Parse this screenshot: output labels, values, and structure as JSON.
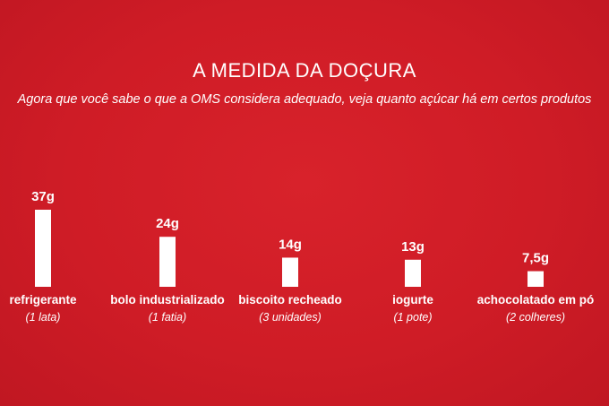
{
  "chart_data": {
    "type": "bar",
    "title": "A MEDIDA DA DOÇURA",
    "subtitle": "Agora que você sabe o que a OMS considera adequado, veja quanto açúcar há em certos produtos",
    "categories": [
      "refrigerante",
      "bolo industrializado",
      "biscoito recheado",
      "iogurte",
      "achocolatado em pó"
    ],
    "notes": [
      "(1 lata)",
      "(1 fatia)",
      "(3 unidades)",
      "(1 pote)",
      "(2 colheres)"
    ],
    "values": [
      37,
      24,
      14,
      13,
      7.5
    ],
    "value_labels": [
      "37g",
      "24g",
      "14g",
      "13g",
      "7,5g"
    ],
    "ylim": [
      0,
      37
    ],
    "grid": false,
    "colors": {
      "background": "#cf1c26",
      "bar": "#ffffff",
      "text": "#ffffff"
    }
  }
}
